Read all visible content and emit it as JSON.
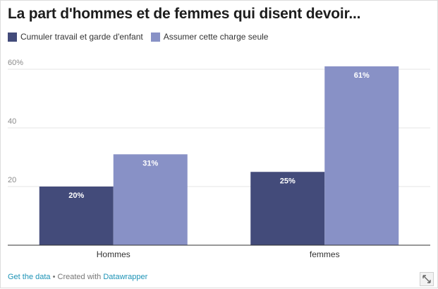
{
  "colors": {
    "series_a": "#434b7a",
    "series_b": "#8891c6",
    "link": "#1d93b6",
    "grid": "#e5e5e5",
    "tick": "#8a8a8a"
  },
  "icons": {
    "expand": "expand-arrows-icon"
  },
  "footer": {
    "get_data": "Get the data",
    "separator": " • Created with ",
    "tool": "Datawrapper"
  },
  "chart_data": {
    "type": "bar",
    "title": "La part d'hommes et de femmes qui disent devoir...",
    "xlabel": "",
    "ylabel": "",
    "categories": [
      "Hommes",
      "femmes"
    ],
    "series": [
      {
        "name": "Cumuler travail et garde d'enfant",
        "values": [
          20,
          25
        ],
        "labels": [
          "20%",
          "25%"
        ]
      },
      {
        "name": "Assumer cette charge seule",
        "values": [
          31,
          61
        ],
        "labels": [
          "31%",
          "61%"
        ]
      }
    ],
    "ylim": [
      0,
      60
    ],
    "yticks": [
      20,
      40,
      60
    ],
    "ytick_labels": [
      "20",
      "40",
      "60%"
    ],
    "grid": true,
    "legend_position": "top-left"
  }
}
